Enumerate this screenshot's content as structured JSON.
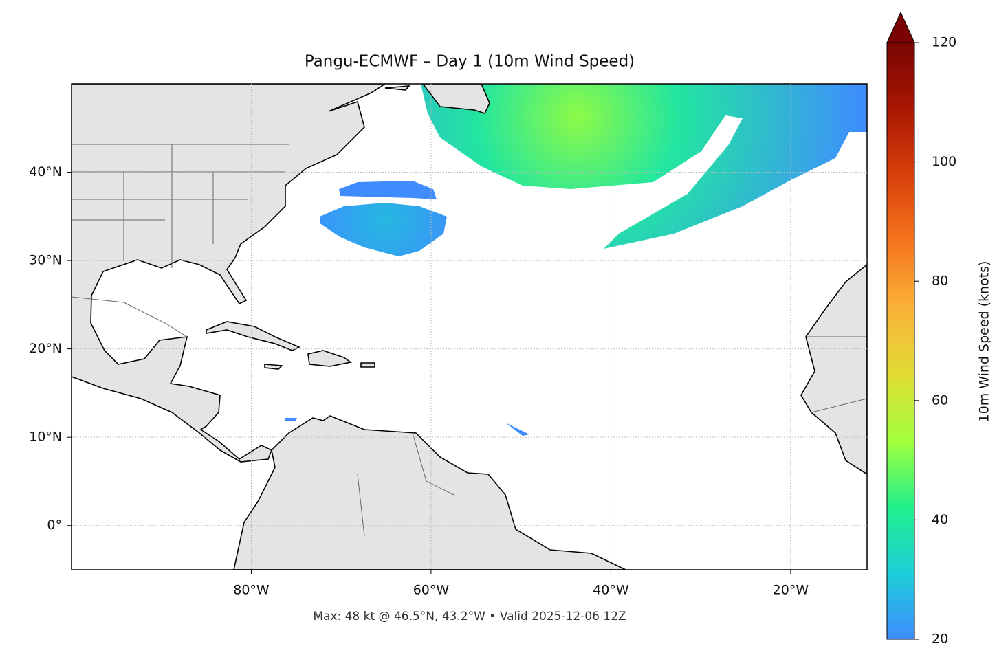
{
  "title": "Pangu-ECMWF – Day 1 (10m Wind Speed)",
  "map": {
    "xlim": [
      -100,
      -11.5
    ],
    "ylim": [
      -5,
      50
    ],
    "xticks": [
      {
        "value": -80,
        "label": "80°W"
      },
      {
        "value": -60,
        "label": "60°W"
      },
      {
        "value": -40,
        "label": "40°W"
      },
      {
        "value": -20,
        "label": "20°W"
      }
    ],
    "yticks": [
      {
        "value": 0,
        "label": "0°"
      },
      {
        "value": 10,
        "label": "10°N"
      },
      {
        "value": 20,
        "label": "20°N"
      },
      {
        "value": 30,
        "label": "30°N"
      },
      {
        "value": 40,
        "label": "40°N"
      }
    ],
    "grid": true
  },
  "colorbar": {
    "label": "10m Wind Speed (knots)",
    "lim": [
      20,
      120
    ],
    "ticks": [
      20,
      40,
      60,
      80,
      100,
      120
    ],
    "colormap": [
      "#3f8cff",
      "#1ccfd8",
      "#22f08c",
      "#a4ff3b",
      "#e0dc35",
      "#fbb238",
      "#f5761e",
      "#d8400a",
      "#a81702",
      "#7a0403"
    ]
  },
  "footer": "Max: 48 kt @ 46.5°N, 43.2°W • Valid 2025-12-06 12Z"
}
